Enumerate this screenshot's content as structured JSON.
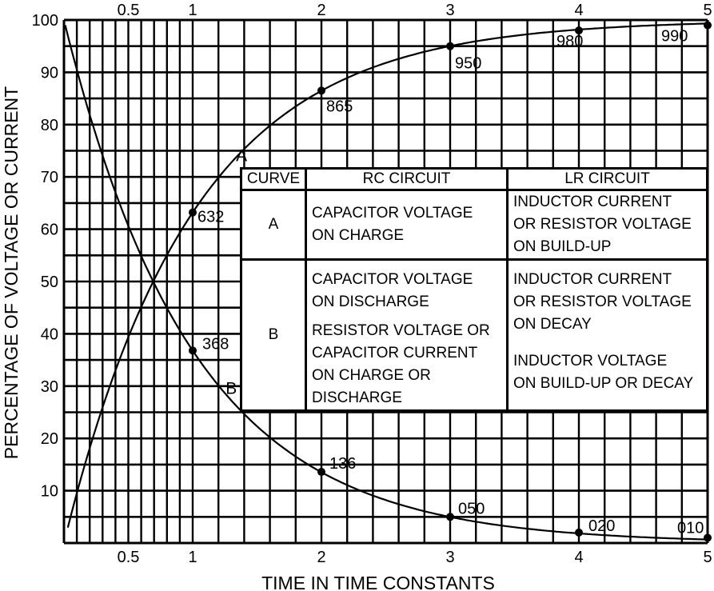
{
  "chart_data": {
    "type": "line",
    "xlabel": "TIME IN TIME CONSTANTS",
    "ylabel": "PERCENTAGE OF VOLTAGE OR CURRENT",
    "xlim": [
      0,
      5
    ],
    "ylim": [
      0,
      100
    ],
    "x_ticks": [
      "0.5",
      "1",
      "2",
      "3",
      "4",
      "5"
    ],
    "y_ticks": [
      "10",
      "20",
      "30",
      "40",
      "50",
      "60",
      "70",
      "80",
      "90",
      "100"
    ],
    "grid": true,
    "series": [
      {
        "name": "A",
        "points": [
          {
            "x": 1,
            "y": 63.2,
            "label": "632"
          },
          {
            "x": 2,
            "y": 86.5,
            "label": "865"
          },
          {
            "x": 3,
            "y": 95.0,
            "label": "950"
          },
          {
            "x": 4,
            "y": 98.0,
            "label": "980"
          },
          {
            "x": 5,
            "y": 99.0,
            "label": "990"
          }
        ]
      },
      {
        "name": "B",
        "points": [
          {
            "x": 1,
            "y": 36.8,
            "label": "368"
          },
          {
            "x": 2,
            "y": 13.6,
            "label": "136"
          },
          {
            "x": 3,
            "y": 5.0,
            "label": "050"
          },
          {
            "x": 4,
            "y": 2.0,
            "label": "020"
          },
          {
            "x": 5,
            "y": 1.0,
            "label": "010"
          }
        ]
      }
    ]
  },
  "legend": {
    "headers": [
      "CURVE",
      "RC CIRCUIT",
      "LR CIRCUIT"
    ],
    "rows": [
      {
        "curve": "A",
        "rc": [
          "CAPACITOR VOLTAGE",
          "ON CHARGE"
        ],
        "lr": [
          "INDUCTOR CURRENT",
          "OR RESISTOR VOLTAGE",
          "ON BUILD-UP"
        ]
      },
      {
        "curve": "B",
        "rc": [
          "CAPACITOR VOLTAGE",
          "ON DISCHARGE",
          "RESISTOR VOLTAGE OR",
          "CAPACITOR CURRENT",
          "ON CHARGE OR",
          "DISCHARGE"
        ],
        "lr": [
          "INDUCTOR CURRENT",
          "OR RESISTOR VOLTAGE",
          "ON DECAY",
          "INDUCTOR VOLTAGE",
          "ON BUILD-UP OR DECAY"
        ]
      }
    ]
  }
}
